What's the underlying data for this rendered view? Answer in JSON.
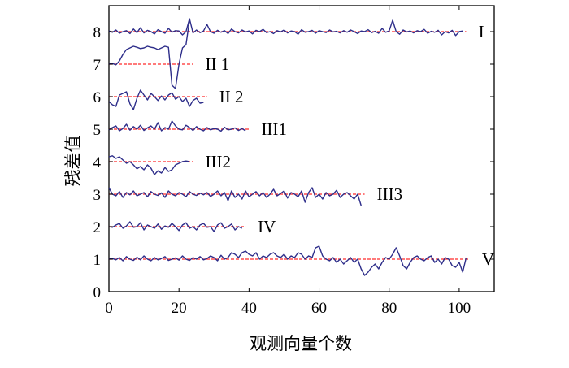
{
  "chart_data": {
    "type": "line",
    "xlabel": "观测向量个数",
    "ylabel": "残差值",
    "xlim": [
      0,
      110
    ],
    "ylim": [
      0,
      8.8
    ],
    "xticks": [
      0,
      20,
      40,
      60,
      80,
      100
    ],
    "yticks": [
      0,
      1,
      2,
      3,
      4,
      5,
      6,
      7,
      8
    ],
    "grid": false,
    "series": [
      {
        "name": "I",
        "baseline": 8,
        "n": 102,
        "values": [
          8.02,
          7.98,
          8.05,
          7.95,
          8.0,
          8.03,
          7.94,
          8.08,
          7.97,
          8.12,
          7.96,
          8.04,
          8.0,
          7.93,
          8.06,
          8.0,
          7.95,
          8.1,
          7.98,
          8.03,
          8.02,
          7.9,
          8.0,
          8.4,
          7.96,
          8.05,
          7.97,
          8.02,
          8.22,
          8.0,
          7.95,
          8.04,
          7.98,
          8.03,
          7.94,
          8.08,
          8.0,
          7.96,
          8.05,
          7.99,
          8.02,
          7.93,
          8.04,
          8.0,
          8.07,
          7.97,
          8.0,
          7.94,
          8.03,
          7.99,
          8.05,
          7.96,
          8.02,
          8.0,
          7.92,
          8.06,
          7.98,
          8.0,
          8.04,
          7.95,
          8.03,
          8.0,
          7.97,
          8.05,
          7.99,
          8.01,
          7.96,
          8.03,
          7.98,
          8.05,
          8.0,
          7.94,
          8.02,
          8.0,
          8.06,
          7.97,
          8.01,
          7.95,
          8.1,
          7.98,
          8.02,
          8.35,
          8.0,
          7.92,
          8.05,
          7.99,
          8.02,
          7.96,
          8.03,
          8.0,
          8.07,
          7.95,
          8.01,
          7.98,
          8.04,
          7.9,
          8.0,
          7.96,
          8.04,
          7.88,
          8.0,
          8.02
        ],
        "label": "I"
      },
      {
        "name": "II1",
        "baseline": 7,
        "n": 24,
        "values": [
          7.0,
          7.02,
          6.98,
          7.1,
          7.3,
          7.45,
          7.5,
          7.55,
          7.52,
          7.48,
          7.5,
          7.55,
          7.52,
          7.5,
          7.45,
          7.5,
          7.55,
          7.52,
          6.35,
          6.25,
          7.0,
          7.5,
          7.6,
          8.35
        ],
        "label": "II 1"
      },
      {
        "name": "II2",
        "baseline": 6,
        "n": 28,
        "values": [
          5.85,
          5.75,
          5.7,
          6.05,
          6.1,
          6.15,
          5.78,
          5.6,
          5.95,
          6.2,
          6.05,
          5.9,
          6.1,
          6.0,
          5.88,
          6.02,
          5.9,
          6.05,
          6.12,
          5.92,
          6.0,
          5.85,
          5.95,
          5.7,
          5.88,
          5.95,
          5.8,
          5.82
        ],
        "label": "II 2"
      },
      {
        "name": "III1",
        "baseline": 5,
        "n": 40,
        "values": [
          4.98,
          5.05,
          5.1,
          4.95,
          5.02,
          5.15,
          4.97,
          5.08,
          5.0,
          5.12,
          4.96,
          5.04,
          5.1,
          5.0,
          5.2,
          4.95,
          5.05,
          5.0,
          5.25,
          5.1,
          5.0,
          4.98,
          5.12,
          5.05,
          4.96,
          5.08,
          5.0,
          4.95,
          5.05,
          4.98,
          5.02,
          5.0,
          4.94,
          5.06,
          4.98,
          5.0,
          5.04,
          4.96,
          5.02,
          4.95
        ],
        "label": "III1"
      },
      {
        "name": "III2",
        "baseline": 4,
        "n": 24,
        "values": [
          4.15,
          4.18,
          4.1,
          4.15,
          4.05,
          3.95,
          4.0,
          3.9,
          3.78,
          3.85,
          3.75,
          3.9,
          3.8,
          3.6,
          3.72,
          3.65,
          3.82,
          3.7,
          3.75,
          3.9,
          3.95,
          4.0,
          4.02,
          4.0
        ],
        "label": "III2"
      },
      {
        "name": "III3",
        "baseline": 3,
        "n": 73,
        "values": [
          3.2,
          3.0,
          2.95,
          3.08,
          2.9,
          3.05,
          2.98,
          3.1,
          2.95,
          3.0,
          3.05,
          2.92,
          3.08,
          3.0,
          2.96,
          3.04,
          2.9,
          3.1,
          3.0,
          2.95,
          3.05,
          3.0,
          2.92,
          3.08,
          3.0,
          2.96,
          3.03,
          2.98,
          3.05,
          2.93,
          3.0,
          3.1,
          2.95,
          3.05,
          2.8,
          3.1,
          2.9,
          3.0,
          2.85,
          3.1,
          2.92,
          3.0,
          3.08,
          2.95,
          3.05,
          2.9,
          3.0,
          3.15,
          2.95,
          3.02,
          3.1,
          2.88,
          3.05,
          3.0,
          2.92,
          3.1,
          2.75,
          3.05,
          3.2,
          2.9,
          3.0,
          2.85,
          3.05,
          2.95,
          3.0,
          3.12,
          2.9,
          3.0,
          3.05,
          2.95,
          2.85,
          3.0,
          2.65
        ],
        "label": "III3"
      },
      {
        "name": "IV",
        "baseline": 2,
        "n": 39,
        "values": [
          2.0,
          1.98,
          2.05,
          2.1,
          1.95,
          2.02,
          2.15,
          1.98,
          2.0,
          2.12,
          1.9,
          2.05,
          2.0,
          1.95,
          2.08,
          1.92,
          2.02,
          1.98,
          2.1,
          2.0,
          1.88,
          2.05,
          2.12,
          1.95,
          2.0,
          1.9,
          2.05,
          2.1,
          1.98,
          2.0,
          1.85,
          2.05,
          2.12,
          1.95,
          2.0,
          2.08,
          1.9,
          2.0,
          1.95
        ],
        "label": "IV"
      },
      {
        "name": "V",
        "baseline": 1,
        "n": 103,
        "values": [
          1.0,
          1.02,
          0.98,
          1.05,
          0.95,
          1.08,
          1.0,
          0.96,
          1.06,
          0.98,
          1.1,
          1.0,
          0.95,
          1.05,
          0.98,
          1.02,
          1.08,
          0.96,
          1.0,
          1.04,
          0.97,
          1.1,
          1.0,
          0.96,
          1.05,
          1.0,
          1.08,
          0.98,
          1.02,
          1.1,
          1.05,
          0.95,
          1.12,
          1.0,
          1.05,
          1.2,
          1.15,
          1.05,
          1.2,
          1.25,
          1.15,
          1.1,
          1.2,
          1.0,
          1.1,
          1.05,
          1.15,
          1.2,
          1.1,
          1.05,
          1.15,
          1.0,
          1.1,
          1.05,
          1.2,
          1.15,
          1.0,
          1.1,
          1.05,
          1.35,
          1.4,
          1.1,
          1.0,
          0.95,
          1.05,
          0.9,
          1.0,
          0.85,
          0.95,
          1.05,
          0.9,
          1.0,
          0.7,
          0.5,
          0.6,
          0.75,
          0.85,
          0.7,
          0.9,
          1.05,
          1.0,
          1.15,
          1.35,
          1.1,
          0.8,
          0.7,
          0.9,
          1.05,
          1.1,
          1.0,
          0.95,
          1.05,
          1.1,
          0.9,
          1.0,
          0.85,
          1.05,
          1.0,
          0.8,
          0.75,
          0.9,
          0.6,
          1.05
        ],
        "label": "V"
      }
    ],
    "colors": {
      "series": "#2e2e8a",
      "baseline": "#ff2a2a",
      "axis": "#000000"
    }
  }
}
